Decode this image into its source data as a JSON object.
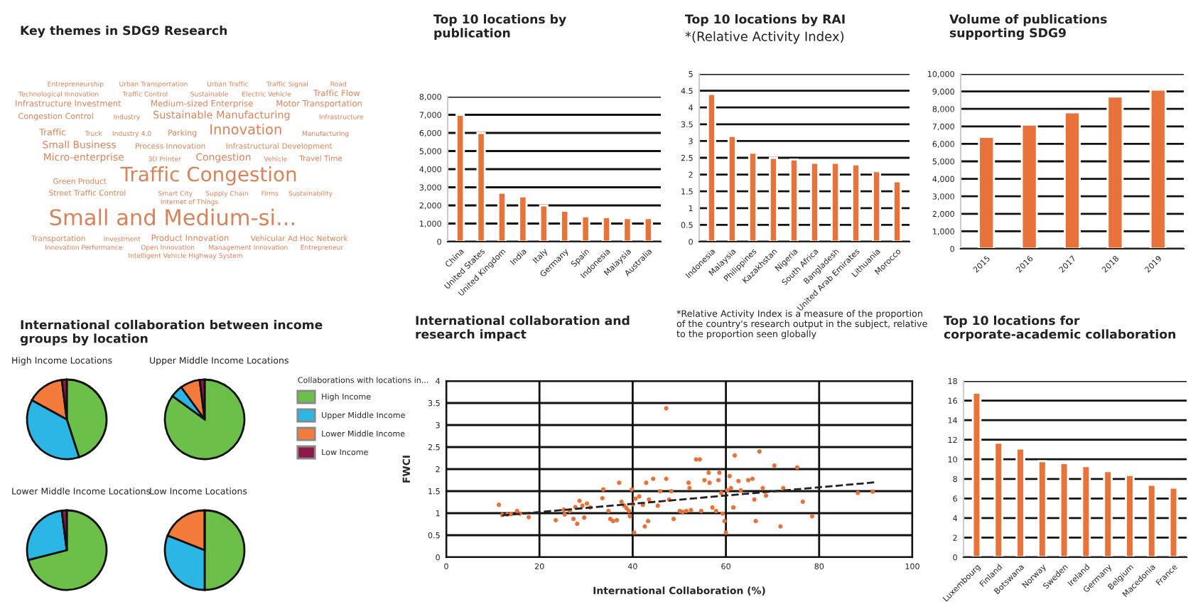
{
  "chart_data": [
    {
      "type": "other",
      "title": "Key themes in SDG9 Research",
      "annotations": [
        "Entrepreneurship",
        "Urban Transportation",
        "Urban Traffic",
        "Traffic Signal",
        "Road",
        "Technological Innovation",
        "Traffic Control",
        "Sustainable",
        "Electric Vehicle",
        "Traffic Flow",
        "Infrastructure Investment",
        "Medium-sized Enterprise",
        "Motor Transportation",
        "Congestion Control",
        "Industry",
        "Sustainable Manufacturing",
        "Infrastructure",
        "Traffic",
        "Truck",
        "Industry 4.0",
        "Parking",
        "Innovation",
        "Manufacturing",
        "Small Business",
        "Process Innovation",
        "Infrastructural Development",
        "Micro-enterprise",
        "3D Printer",
        "Congestion",
        "Vehicle",
        "Travel Time",
        "Green Product",
        "Traffic Congestion",
        "Street Traffic Control",
        "Smart City",
        "Supply Chain",
        "Firms",
        "Sustainability",
        "Internet of Things",
        "Small and Medium-si...",
        "Transportation",
        "Investment",
        "Product Innovation",
        "Vehicular Ad Hoc Network",
        "Innovation Performance",
        "Open Innovation",
        "Management Innovation",
        "Entrepreneur",
        "Intelligent Vehicle Highway System"
      ]
    },
    {
      "type": "bar",
      "title": "Top 10 locations by publication",
      "categories": [
        "China",
        "United States",
        "United Kingdom",
        "India",
        "Italy",
        "Germany",
        "Spain",
        "Indonesia",
        "Malaysia",
        "Australia"
      ],
      "values": [
        7000,
        6000,
        2700,
        2500,
        2000,
        1700,
        1400,
        1350,
        1300,
        1300
      ],
      "color": "#e8733a",
      "ylim": [
        0,
        8000
      ],
      "yticks": [
        0,
        {
          "value": 1000,
          "label": "1,000"
        },
        {
          "value": 2000,
          "label": "2,000"
        },
        {
          "value": 3000,
          "label": "3,000"
        },
        {
          "value": 4000,
          "label": "4,000"
        },
        {
          "value": 5000,
          "label": "5,000"
        },
        {
          "value": 6000,
          "label": "6,000"
        },
        {
          "value": 7000,
          "label": "7,000"
        },
        {
          "value": 8000,
          "label": "8,000"
        }
      ],
      "grid": "y"
    },
    {
      "type": "bar",
      "title": "Top 10 locations by RAI",
      "subtitle": "*(Relative Activity Index)",
      "categories": [
        "Indonesia",
        "Malaysia",
        "Philippines",
        "Kazakhstan",
        "Nigeria",
        "South Africa",
        "Bangladesh",
        "United Arab Emirates",
        "Lithuania",
        "Morocco"
      ],
      "values": [
        4.4,
        3.15,
        2.65,
        2.5,
        2.45,
        2.35,
        2.35,
        2.3,
        2.1,
        1.8
      ],
      "color": "#e8733a",
      "ylim": [
        0,
        5
      ],
      "yticks": [
        0,
        0.5,
        1,
        1.5,
        2,
        2.5,
        3,
        3.5,
        4,
        4.5,
        5
      ],
      "grid": "y"
    },
    {
      "type": "bar",
      "title": "Volume of publications supporting SDG9",
      "categories": [
        "2015",
        "2016",
        "2017",
        "2018",
        "2019"
      ],
      "values": [
        6400,
        7100,
        7800,
        8700,
        9100
      ],
      "color": "#e8733a",
      "ylim": [
        0,
        10000
      ],
      "yticks": [
        0,
        {
          "value": 1000,
          "label": "1,000"
        },
        {
          "value": 2000,
          "label": "2,000"
        },
        {
          "value": 3000,
          "label": "3,000"
        },
        {
          "value": 4000,
          "label": "4,000"
        },
        {
          "value": 5000,
          "label": "5,000"
        },
        {
          "value": 6000,
          "label": "6,000"
        },
        {
          "value": 7000,
          "label": "7,000"
        },
        {
          "value": 8000,
          "label": "8,000"
        },
        {
          "value": 9000,
          "label": "9,000"
        },
        {
          "value": 10000,
          "label": "10,000"
        }
      ],
      "grid": "y"
    },
    {
      "type": "pie",
      "title": "International collaboration between income groups by location",
      "categories": [
        "High Income",
        "Upper Middle Income",
        "Lower Middle Income",
        "Low Income"
      ],
      "colors": [
        "#6cc04a",
        "#2bb6e6",
        "#f47b3c",
        "#8b1a4a"
      ],
      "legend": "right",
      "legend_title": "Collaborations with locations in...",
      "series": [
        {
          "name": "High Income Locations",
          "values": [
            45,
            38,
            15,
            2
          ]
        },
        {
          "name": "Upper Middle Income Locations",
          "values": [
            85,
            5,
            8,
            2
          ]
        },
        {
          "name": "Lower Middle Income Locations",
          "values": [
            71,
            27,
            null,
            2
          ]
        },
        {
          "name": "Low Income Locations",
          "values": [
            50,
            31,
            19,
            0
          ]
        }
      ]
    },
    {
      "type": "scatter",
      "title": "International collaboration and research impact",
      "annotations": [
        "*Relative Activity Index is a measure of the proportion of the country's research output in the subject, relative to the proportion seen globally"
      ],
      "xlabel": "International Collaboration (%)",
      "ylabel": "FWCI",
      "xlim": [
        0,
        100
      ],
      "xticks": [
        0,
        20,
        40,
        60,
        80,
        100
      ],
      "ylim": [
        0,
        4
      ],
      "yticks": [
        0,
        0.5,
        1,
        1.5,
        2,
        2.5,
        3,
        3.5,
        4
      ],
      "grid": true,
      "series": [
        {
          "type": "scatter",
          "color": "#e8733a",
          "marker": "circle",
          "x": [
            11.3,
            12,
            13.1,
            13.9,
            15.2,
            15.8,
            17.7,
            23.5,
            25.2,
            25.4,
            26.5,
            27.3,
            27.7,
            28.1,
            28.6,
            29.2,
            29.6,
            30.2,
            30.9,
            33.5,
            33.7,
            34.8,
            35.2,
            35.8,
            36.6,
            37.1,
            37.6,
            38.2,
            38.7,
            39.2,
            39.4,
            39.8,
            40.1,
            40.3,
            40.6,
            41.4,
            42.2,
            42.6,
            42.9,
            43.3,
            43.5,
            44.4,
            45.4,
            45.9,
            47.2,
            47.2,
            47.8,
            48.3,
            48.8,
            50.1,
            50.7,
            51.5,
            52,
            52.2,
            52.5,
            53.6,
            54.4,
            54.7,
            55.4,
            56.3,
            56.5,
            57.1,
            57.9,
            58.4,
            58.6,
            59,
            59.3,
            59.7,
            60,
            60.3,
            60.8,
            61.1,
            61.6,
            61.9,
            62.7,
            63.2,
            64.8,
            65.7,
            66.1,
            66.4,
            67.2,
            67.9,
            68.6,
            70.4,
            71.7,
            72.3,
            75.3,
            76.5,
            78.5,
            88.3,
            91.5
          ],
          "values": [
            1.19,
            0.96,
            0.97,
            0.98,
            1.05,
            0.99,
            0.91,
            0.84,
            1.08,
            0.97,
            1.05,
            0.87,
            1.14,
            0.76,
            1.28,
            1.17,
            0.9,
            1.22,
            1.13,
            1.34,
            1.54,
            1.05,
            0.87,
            0.82,
            0.84,
            1.69,
            1.26,
            1.17,
            1.11,
            1.05,
            0.93,
            1.54,
            1.2,
            0.56,
            1.33,
            1.38,
            1.19,
            0.7,
            1.69,
            0.82,
            1.31,
            1.78,
            1.17,
            1.5,
            3.38,
            1.78,
            1.31,
            1.5,
            0.87,
            1.05,
            1.03,
            1.05,
            1.69,
            1.57,
            1.07,
            2.22,
            2.22,
            1.05,
            1.75,
            1.92,
            1.69,
            1.13,
            1.05,
            1.75,
            1.92,
            1.46,
            0.99,
            0.82,
            0.56,
            1.52,
            1.84,
            1.57,
            1.13,
            2.31,
            1.73,
            1.52,
            1.75,
            1.78,
            1.31,
            0.82,
            2.4,
            1.57,
            1.4,
            2.08,
            0.7,
            1.57,
            2.04,
            1.26,
            0.93,
            1.46,
            1.49
          ]
        },
        {
          "type": "line",
          "color": "#222222",
          "line_style": "dashed",
          "x": [
            12,
            92
          ],
          "values": [
            0.95,
            1.7
          ]
        }
      ]
    },
    {
      "type": "bar",
      "title": "Top 10 locations for corporate-academic collaboration",
      "categories": [
        "Luxembourg",
        "Finland",
        "Botswana",
        "Norway",
        "Sweden",
        "Ireland",
        "Germany",
        "Belgium",
        "Macedonia",
        "France"
      ],
      "values": [
        16.8,
        11.7,
        11.1,
        9.8,
        9.6,
        9.3,
        8.8,
        8.4,
        7.4,
        7.1
      ],
      "color": "#e8733a",
      "ylim": [
        0,
        18
      ],
      "yticks": [
        0,
        2,
        4,
        6,
        8,
        10,
        12,
        14,
        16,
        18
      ],
      "grid": "y"
    }
  ]
}
